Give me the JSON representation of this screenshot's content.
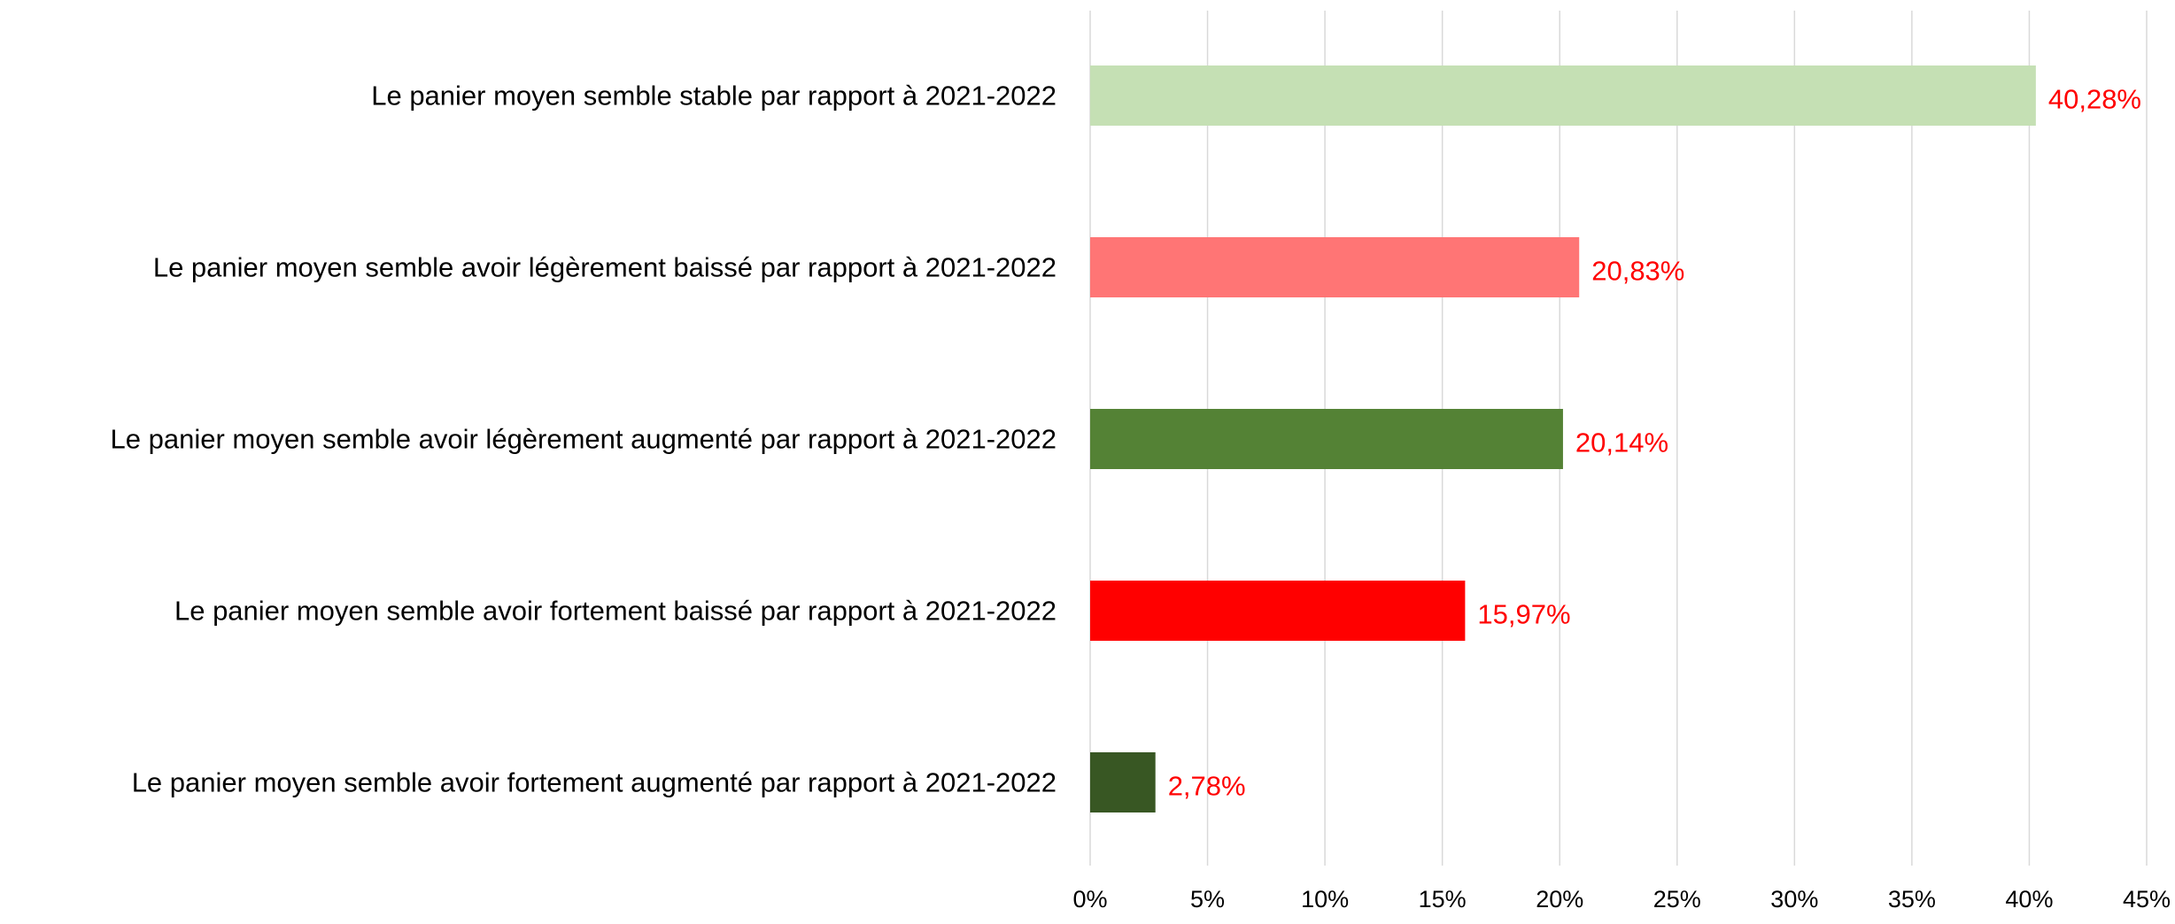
{
  "chart_data": {
    "type": "bar",
    "orientation": "horizontal",
    "categories": [
      "Le panier moyen semble stable par rapport à 2021-2022",
      "Le panier moyen semble avoir légèrement baissé par rapport à 2021-2022",
      "Le panier moyen semble avoir légèrement augmenté par rapport à 2021-2022",
      "Le panier moyen semble avoir fortement baissé par rapport à 2021-2022",
      "Le panier moyen semble avoir fortement augmenté par rapport à 2021-2022"
    ],
    "values": [
      40.28,
      20.83,
      20.14,
      15.97,
      2.78
    ],
    "value_labels": [
      "40,28%",
      "20,83%",
      "20,14%",
      "15,97%",
      "2,78%"
    ],
    "bar_colors": [
      "#c5e0b4",
      "#ff7575",
      "#548235",
      "#ff0000",
      "#385723"
    ],
    "xlim": [
      0,
      45
    ],
    "x_ticks": [
      0,
      5,
      10,
      15,
      20,
      25,
      30,
      35,
      40,
      45
    ],
    "x_tick_labels": [
      "0%",
      "5%",
      "10%",
      "15%",
      "20%",
      "25%",
      "30%",
      "35%",
      "40%",
      "45%"
    ],
    "title": "",
    "xlabel": "",
    "ylabel": "",
    "grid": "vertical",
    "legend": "none",
    "colors": {
      "label_text": "#000000",
      "value_label_text": "#ff0000",
      "gridline": "#d9d9d9",
      "tick_text": "#000000"
    }
  }
}
